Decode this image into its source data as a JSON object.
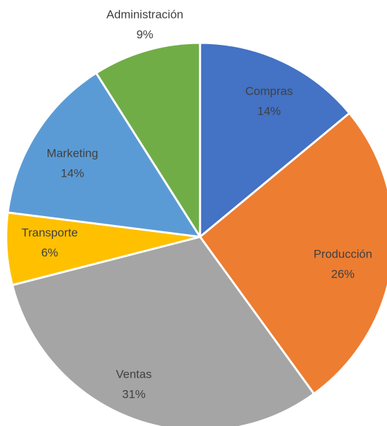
{
  "chart_data": {
    "type": "pie",
    "categories": [
      "Compras",
      "Producción",
      "Ventas",
      "Transporte",
      "Marketing",
      "Administración"
    ],
    "values": [
      14,
      26,
      31,
      6,
      14,
      9
    ],
    "value_labels": [
      "14%",
      "26%",
      "31%",
      "6%",
      "14%",
      "9%"
    ],
    "colors": [
      "#4472c4",
      "#ed7d31",
      "#a5a5a5",
      "#ffc000",
      "#5b9bd5",
      "#70ad47"
    ]
  }
}
